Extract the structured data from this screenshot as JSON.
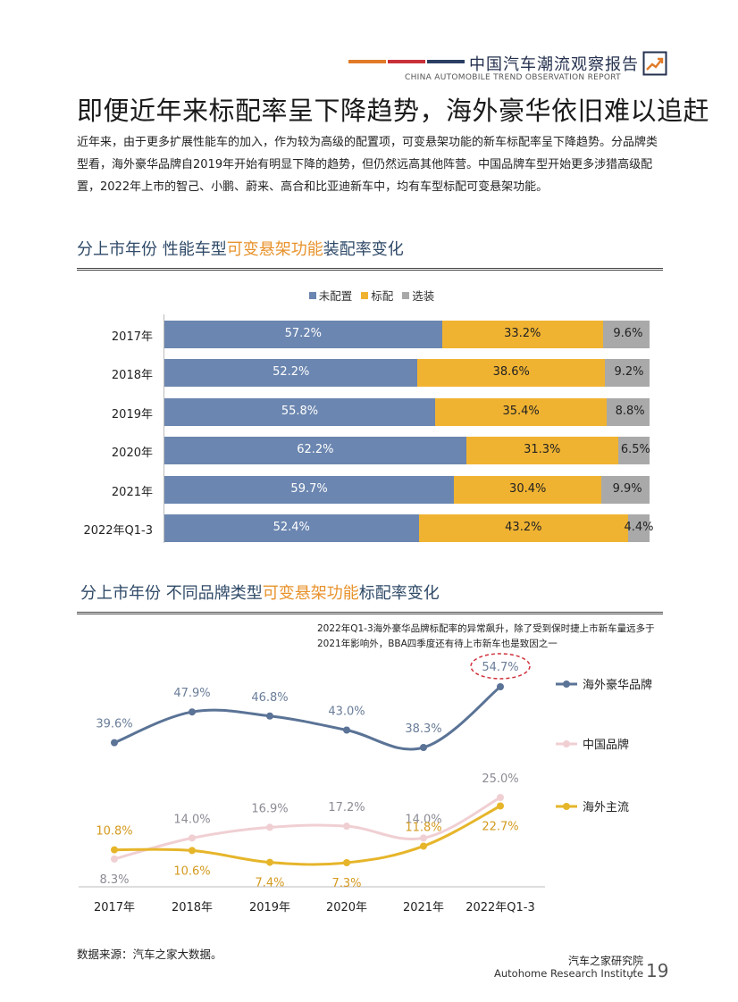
{
  "header": {
    "title": "中国汽车潮流观察报告",
    "subtitle": "CHINA AUTOMOBILE TREND OBSERVATION REPORT",
    "bar_colors": [
      "#e07b28",
      "#c8303a",
      "#2a3f63"
    ]
  },
  "headline": "即便近年来标配率呈下降趋势，海外豪华依旧难以追赶",
  "intro": "近年来，由于更多扩展性能车的加入，作为较为高级的配置项，可变悬架功能的新车标配率呈下降趋势。分品牌类型看，海外豪华品牌自2019年开始有明显下降的趋势，但仍然远高其他阵营。中国品牌车型开始更多涉猎高级配置，2022年上市的智己、小鹏、蔚来、高合和比亚迪新车中，均有车型标配可变悬架功能。",
  "section1": {
    "pre": "分上市年份  性能车型",
    "hl": "可变悬架功能",
    "post": "装配率变化"
  },
  "section2": {
    "pre": "分上市年份  不同品牌类型",
    "hl": "可变悬架功能",
    "post": "标配率变化"
  },
  "chart_data": [
    {
      "type": "bar",
      "orientation": "horizontal-stacked-100",
      "categories": [
        "2017年",
        "2018年",
        "2019年",
        "2020年",
        "2021年",
        "2022年Q1-3"
      ],
      "series": [
        {
          "name": "未配置",
          "color": "#6b86b0",
          "values": [
            57.2,
            52.2,
            55.8,
            62.2,
            59.7,
            52.4
          ],
          "labels": [
            "57.2%",
            "52.2%",
            "55.8%",
            "62.2%",
            "59.7%",
            "52.4%"
          ]
        },
        {
          "name": "标配",
          "color": "#f0b331",
          "values": [
            33.2,
            38.6,
            35.4,
            31.3,
            30.4,
            43.2
          ],
          "labels": [
            "33.2%",
            "38.6%",
            "35.4%",
            "31.3%",
            "30.4%",
            "43.2%"
          ]
        },
        {
          "name": "选装",
          "color": "#a9a9a9",
          "values": [
            9.6,
            9.2,
            8.8,
            6.5,
            9.9,
            4.4
          ],
          "labels": [
            "9.6%",
            "9.2%",
            "8.8%",
            "6.5%",
            "9.9%",
            "4.4%"
          ]
        }
      ],
      "legend_position": "top-center"
    },
    {
      "type": "line",
      "categories": [
        "2017年",
        "2018年",
        "2019年",
        "2020年",
        "2021年",
        "2022年Q1-3"
      ],
      "series": [
        {
          "name": "海外豪华品牌",
          "color": "#5a7396",
          "values": [
            39.6,
            47.9,
            46.8,
            43.0,
            38.3,
            54.7
          ],
          "labels": [
            "39.6%",
            "47.9%",
            "46.8%",
            "43.0%",
            "38.3%",
            "54.7%"
          ]
        },
        {
          "name": "中国品牌",
          "color": "#f0cfd3",
          "values": [
            8.3,
            14.0,
            16.9,
            17.2,
            14.0,
            25.0
          ],
          "labels": [
            "8.3%",
            "14.0%",
            "16.9%",
            "17.2%",
            "14.0%",
            "25.0%"
          ]
        },
        {
          "name": "海外主流",
          "color": "#e6b52a",
          "values": [
            10.8,
            10.6,
            7.4,
            7.3,
            11.8,
            22.7
          ],
          "labels": [
            "10.8%",
            "10.6%",
            "7.4%",
            "7.3%",
            "11.8%",
            "22.7%"
          ]
        }
      ],
      "annotation": "2022年Q1-3海外豪华品牌标配率的异常飙升，除了受到保时捷上市新车量远多于2021年影响外，BBA四季度还有待上市新车也是致因之一",
      "highlight": {
        "series": "海外豪华品牌",
        "category": "2022年Q1-3",
        "style": "red dashed ellipse"
      },
      "legend_position": "right"
    }
  ],
  "source": "数据来源：汽车之家大数据。",
  "footer": {
    "org_cn": "汽车之家研究院",
    "org_en": "Autohome Research Institute",
    "page": "19"
  }
}
